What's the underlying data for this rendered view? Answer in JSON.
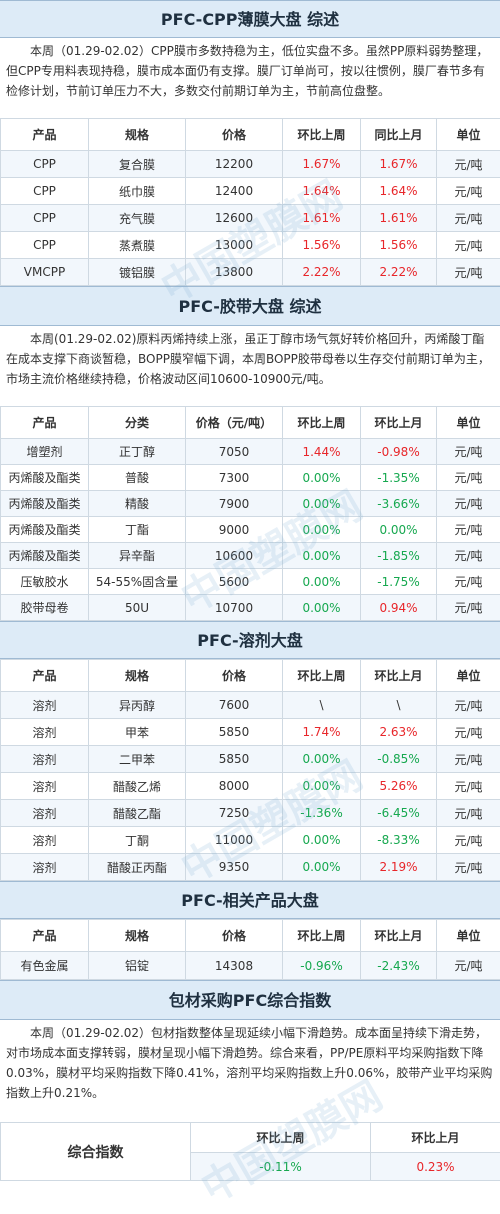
{
  "cpp": {
    "title": "PFC-CPP薄膜大盘 综述",
    "summary": "本周（01.29-02.02）CPP膜市多数持稳为主，低位实盘不多。虽然PP原料弱势整理，但CPP专用料表现持稳，膜市成本面仍有支撑。膜厂订单尚可，按以往惯例，膜厂春节多有检修计划，节前订单压力不大，多数交付前期订单为主，节前高位盘整。",
    "headers": [
      "产品",
      "规格",
      "价格",
      "环比上周",
      "同比上月",
      "单位"
    ],
    "rows": [
      {
        "product": "CPP",
        "spec": "复合膜",
        "price": "12200",
        "wow": "1.67%",
        "mom": "1.67%",
        "unit": "元/吨",
        "wc": "red",
        "mc": "red"
      },
      {
        "product": "CPP",
        "spec": "纸巾膜",
        "price": "12400",
        "wow": "1.64%",
        "mom": "1.64%",
        "unit": "元/吨",
        "wc": "red",
        "mc": "red"
      },
      {
        "product": "CPP",
        "spec": "充气膜",
        "price": "12600",
        "wow": "1.61%",
        "mom": "1.61%",
        "unit": "元/吨",
        "wc": "red",
        "mc": "red"
      },
      {
        "product": "CPP",
        "spec": "蒸煮膜",
        "price": "13000",
        "wow": "1.56%",
        "mom": "1.56%",
        "unit": "元/吨",
        "wc": "red",
        "mc": "red"
      },
      {
        "product": "VMCPP",
        "spec": "镀铝膜",
        "price": "13800",
        "wow": "2.22%",
        "mom": "2.22%",
        "unit": "元/吨",
        "wc": "red",
        "mc": "red"
      }
    ]
  },
  "tape": {
    "title": "PFC-胶带大盘 综述",
    "summary": "本周(01.29-02.02)原料丙烯持续上涨，虽正丁醇市场气氛好转价格回升，丙烯酸丁酯在成本支撑下商谈暂稳，BOPP膜窄幅下调，本周BOPP胶带母卷以生存交付前期订单为主，市场主流价格继续持稳，价格波动区间10600-10900元/吨。",
    "headers": [
      "产品",
      "分类",
      "价格（元/吨）",
      "环比上周",
      "环比上月",
      "单位"
    ],
    "rows": [
      {
        "product": "增塑剂",
        "spec": "正丁醇",
        "price": "7050",
        "wow": "1.44%",
        "mom": "-0.98%",
        "unit": "元/吨",
        "wc": "red",
        "mc": "red"
      },
      {
        "product": "丙烯酸及酯类",
        "spec": "普酸",
        "price": "7300",
        "wow": "0.00%",
        "mom": "-1.35%",
        "unit": "元/吨",
        "wc": "green",
        "mc": "green"
      },
      {
        "product": "丙烯酸及酯类",
        "spec": "精酸",
        "price": "7900",
        "wow": "0.00%",
        "mom": "-3.66%",
        "unit": "元/吨",
        "wc": "green",
        "mc": "green"
      },
      {
        "product": "丙烯酸及酯类",
        "spec": "丁酯",
        "price": "9000",
        "wow": "0.00%",
        "mom": "0.00%",
        "unit": "元/吨",
        "wc": "green",
        "mc": "green"
      },
      {
        "product": "丙烯酸及酯类",
        "spec": "异辛酯",
        "price": "10600",
        "wow": "0.00%",
        "mom": "-1.85%",
        "unit": "元/吨",
        "wc": "green",
        "mc": "green"
      },
      {
        "product": "压敏胶水",
        "spec": "54-55%固含量",
        "price": "5600",
        "wow": "0.00%",
        "mom": "-1.75%",
        "unit": "元/吨",
        "wc": "green",
        "mc": "green"
      },
      {
        "product": "胶带母卷",
        "spec": "50U",
        "price": "10700",
        "wow": "0.00%",
        "mom": "0.94%",
        "unit": "元/吨",
        "wc": "green",
        "mc": "red"
      }
    ]
  },
  "solvent": {
    "title": "PFC-溶剂大盘",
    "headers": [
      "产品",
      "规格",
      "价格",
      "环比上周",
      "环比上月",
      "单位"
    ],
    "rows": [
      {
        "product": "溶剂",
        "spec": "异丙醇",
        "price": "7600",
        "wow": "\\",
        "mom": "\\",
        "unit": "元/吨",
        "wc": "black",
        "mc": "black"
      },
      {
        "product": "溶剂",
        "spec": "甲苯",
        "price": "5850",
        "wow": "1.74%",
        "mom": "2.63%",
        "unit": "元/吨",
        "wc": "red",
        "mc": "red"
      },
      {
        "product": "溶剂",
        "spec": "二甲苯",
        "price": "5850",
        "wow": "0.00%",
        "mom": "-0.85%",
        "unit": "元/吨",
        "wc": "green",
        "mc": "green"
      },
      {
        "product": "溶剂",
        "spec": "醋酸乙烯",
        "price": "8000",
        "wow": "0.00%",
        "mom": "5.26%",
        "unit": "元/吨",
        "wc": "green",
        "mc": "red"
      },
      {
        "product": "溶剂",
        "spec": "醋酸乙酯",
        "price": "7250",
        "wow": "-1.36%",
        "mom": "-6.45%",
        "unit": "元/吨",
        "wc": "green",
        "mc": "green"
      },
      {
        "product": "溶剂",
        "spec": "丁酮",
        "price": "11000",
        "wow": "0.00%",
        "mom": "-8.33%",
        "unit": "元/吨",
        "wc": "green",
        "mc": "green"
      },
      {
        "product": "溶剂",
        "spec": "醋酸正丙酯",
        "price": "9350",
        "wow": "0.00%",
        "mom": "2.19%",
        "unit": "元/吨",
        "wc": "green",
        "mc": "red"
      }
    ]
  },
  "related": {
    "title": "PFC-相关产品大盘",
    "headers": [
      "产品",
      "规格",
      "价格",
      "环比上周",
      "环比上月",
      "单位"
    ],
    "rows": [
      {
        "product": "有色金属",
        "spec": "铝锭",
        "price": "14308",
        "wow": "-0.96%",
        "mom": "-2.43%",
        "unit": "元/吨",
        "wc": "green",
        "mc": "green"
      }
    ]
  },
  "index": {
    "title": "包材采购PFC综合指数",
    "summary": "本周（01.29-02.02）包材指数整体呈现延续小幅下滑趋势。成本面呈持续下滑走势，对市场成本面支撑转弱，膜材呈现小幅下滑趋势。综合来看，PP/PE原料平均采购指数下降0.03%，膜材平均采购指数下降0.41%，溶剂平均采购指数上升0.06%，胶带产业平均采购指数上升0.21%。",
    "label": "综合指数",
    "h_wow": "环比上周",
    "h_mom": "环比上月",
    "wow": "-0.11%",
    "mom": "0.23%"
  },
  "watermark": "中国塑膜网",
  "colors": {
    "header_bg": "#ddebf7",
    "alt_row": "#f2f7fc",
    "up": "#e8262a",
    "down": "#16a84f"
  }
}
